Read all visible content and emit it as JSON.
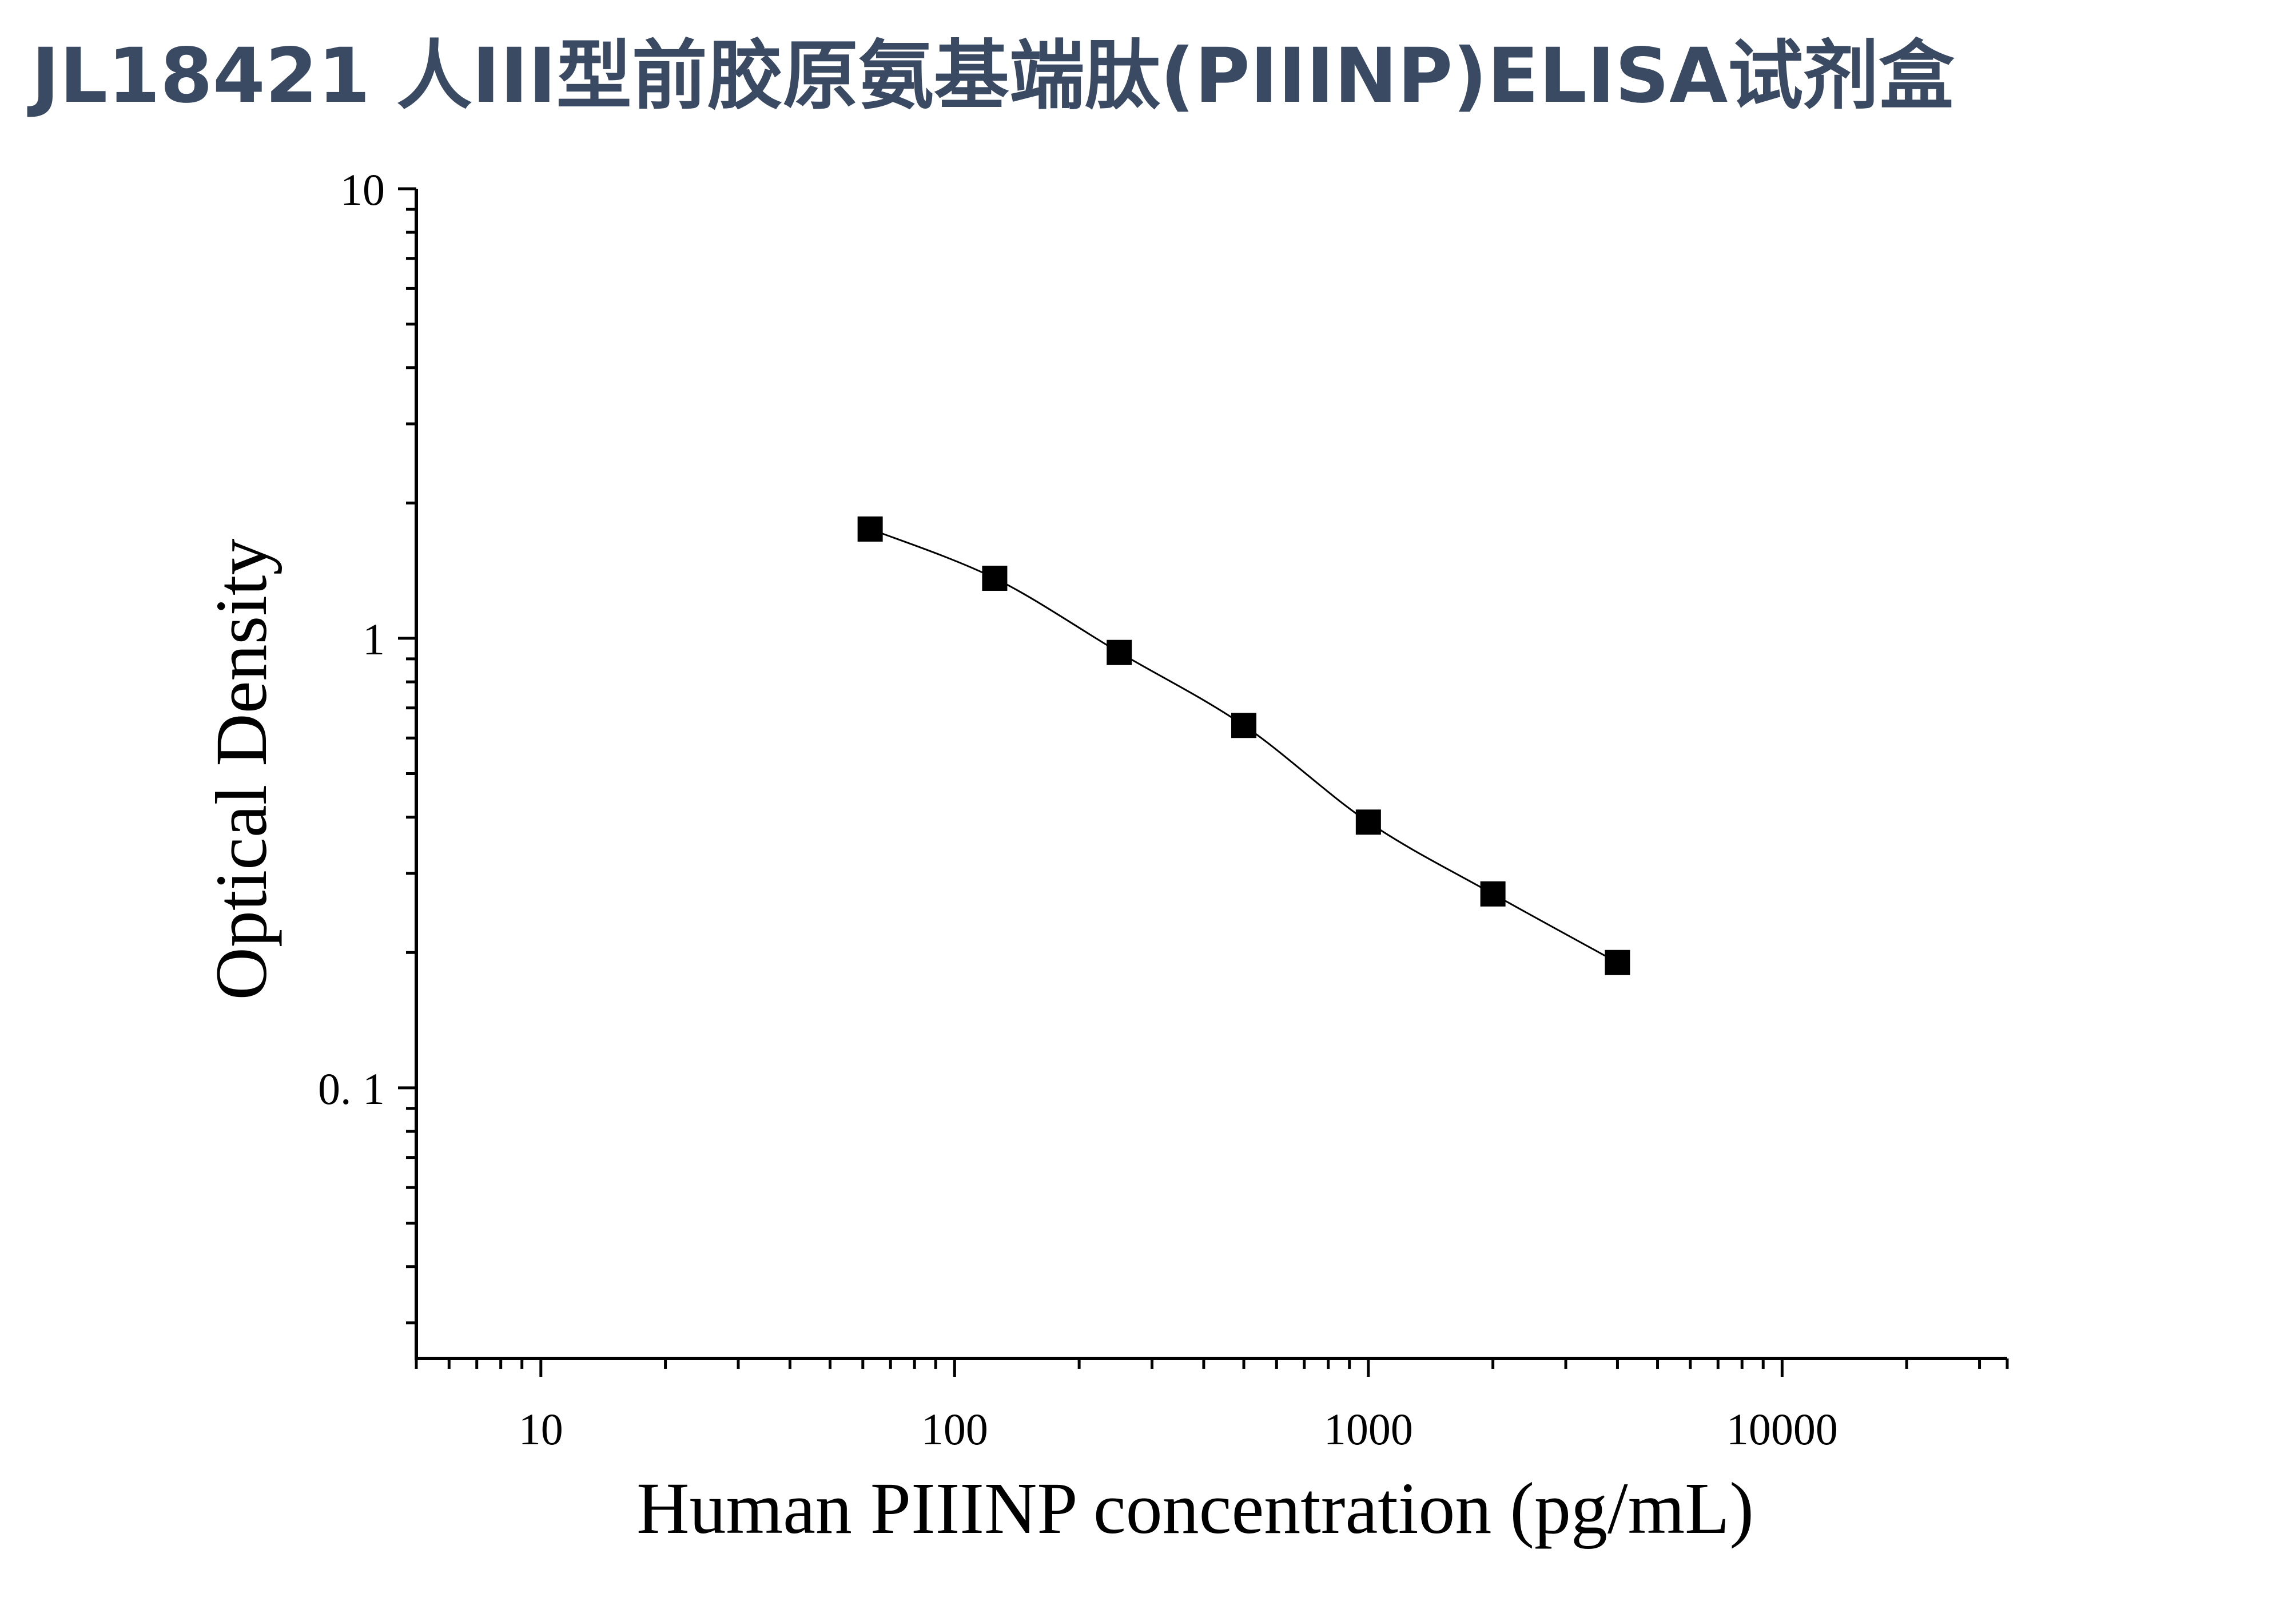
{
  "chart_data": {
    "type": "scatter",
    "title": "JL18421 人III型前胶原氨基端肽(PIIINP)ELISA试剂盒",
    "xlabel": "Human PIIINP concentration (pg/mL)",
    "ylabel": "Optical Density",
    "x_scale": "log",
    "y_scale": "log",
    "xlim": [
      5,
      35000
    ],
    "ylim": [
      0.025,
      10
    ],
    "x_ticks": [
      {
        "value": 10,
        "label": "10"
      },
      {
        "value": 100,
        "label": "100"
      },
      {
        "value": 1000,
        "label": "1000"
      },
      {
        "value": 10000,
        "label": "10000"
      }
    ],
    "y_ticks": [
      {
        "value": 0.1,
        "label": "0. 1"
      },
      {
        "value": 1,
        "label": "1"
      },
      {
        "value": 10,
        "label": "10"
      }
    ],
    "series": [
      {
        "x": [
          62.5,
          125,
          250,
          500,
          1000,
          2000,
          4000
        ],
        "y": [
          1.75,
          1.36,
          0.93,
          0.64,
          0.39,
          0.27,
          0.19
        ],
        "marker": "square",
        "color": "#000000",
        "fit_line": true
      }
    ],
    "grid": false,
    "legend": "none"
  }
}
